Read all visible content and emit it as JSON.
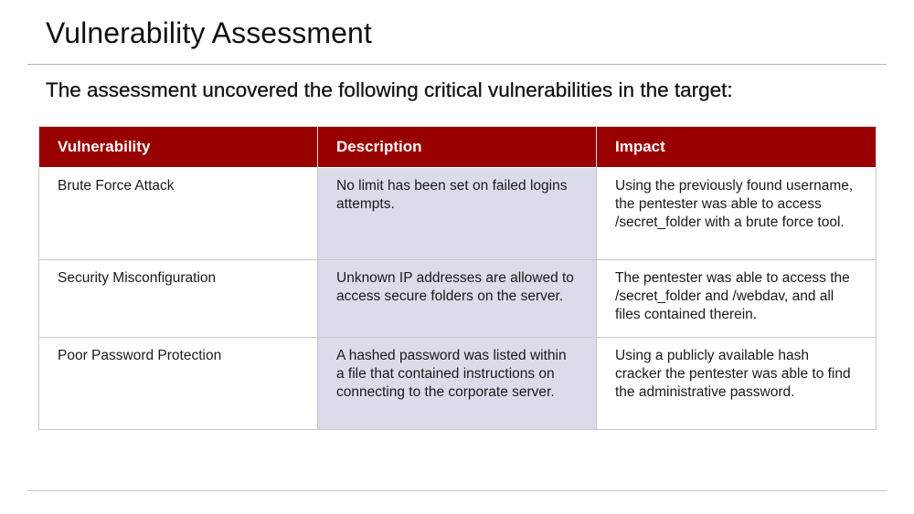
{
  "slide": {
    "title": "Vulnerability Assessment",
    "subtitle": "The assessment uncovered the following critical vulnerabilities in the target:"
  },
  "table": {
    "headers": [
      "Vulnerability",
      "Description",
      "Impact"
    ],
    "rows": [
      {
        "vulnerability": "Brute Force Attack",
        "description": "No limit has been set on failed logins attempts.",
        "impact": "Using the previously found username, the pentester was able to access /secret_folder with a brute force tool."
      },
      {
        "vulnerability": "Security Misconfiguration",
        "description": "Unknown IP addresses are allowed to access secure folders on the server.",
        "impact": "The pentester was able to access the /secret_folder and /webdav, and all files contained therein."
      },
      {
        "vulnerability": "Poor Password Protection",
        "description": "A hashed password was listed within a file that contained instructions on connecting to the corporate server.",
        "impact": "Using a publicly available hash cracker the pentester was able to find the administrative password."
      }
    ]
  },
  "colors": {
    "header_bg": "#990000",
    "description_bg": "#dcdbe9"
  }
}
